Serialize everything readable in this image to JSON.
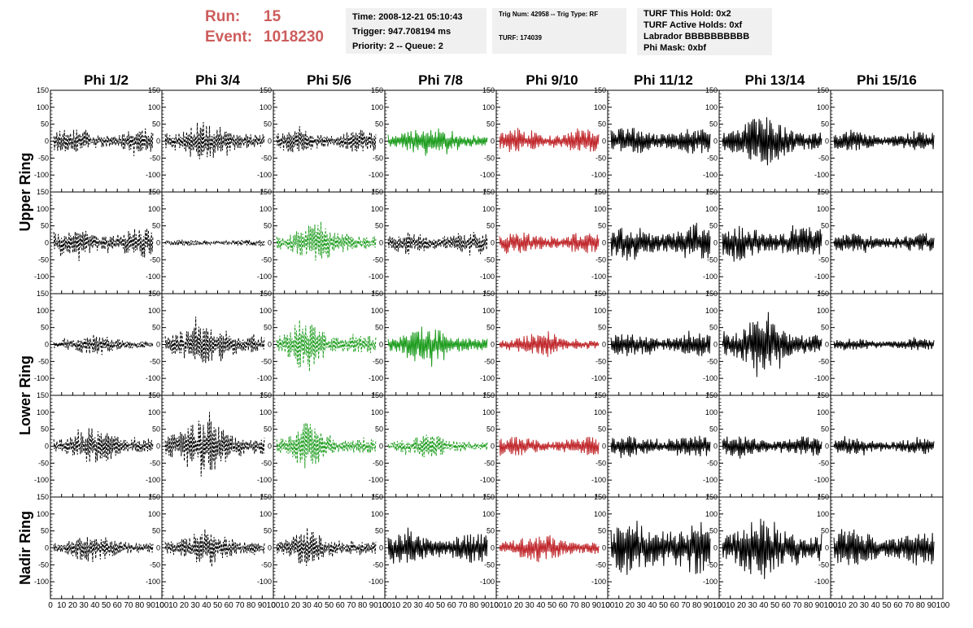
{
  "header": {
    "run_label": "Run:",
    "run_value": "15",
    "event_label": "Event:",
    "event_value": "1018230"
  },
  "time_box": {
    "time": "Time: 2008-12-21 05:10:43",
    "trigger": "Trigger: 947.708194 ms",
    "priority": "Priority: 2 -- Queue: 2"
  },
  "trig_box": {
    "line1": "Trig Num: 42958 -- Trig Type: RF",
    "line2": "TURF: 174039"
  },
  "turf_box": {
    "hold": "TURF This Hold: 0x2",
    "active": "TURF Active Holds: 0xf",
    "labrador": "Labrador BBBBBBBBBB",
    "phimask": "Phi Mask: 0xbf"
  },
  "colors": {
    "header_red": "#cd5c5c",
    "box_bg": "#f0f0f0",
    "trace_black": "#000000",
    "trace_green": "#1f9d1f",
    "trace_red": "#c0282c"
  },
  "chart_data": {
    "type": "line",
    "title": "",
    "columns": [
      "Phi 1/2",
      "Phi 3/4",
      "Phi 5/6",
      "Phi 7/8",
      "Phi 9/10",
      "Phi 11/12",
      "Phi 13/14",
      "Phi 15/16"
    ],
    "ring_labels": [
      {
        "label": "Upper Ring",
        "rows": [
          0,
          1
        ]
      },
      {
        "label": "Lower Ring",
        "rows": [
          2,
          3
        ]
      },
      {
        "label": "Nadir Ring",
        "rows": [
          4
        ]
      }
    ],
    "xlim": [
      0,
      100
    ],
    "x_ticks": [
      0,
      10,
      20,
      30,
      40,
      50,
      60,
      70,
      80,
      90,
      100
    ],
    "x_tick_labels": [
      "0",
      "10",
      "20",
      "30",
      "40",
      "50",
      "60",
      "70",
      "80",
      "90",
      "100"
    ],
    "ylim_rows": [
      [
        -150,
        150
      ],
      [
        -150,
        150
      ],
      [
        -150,
        150
      ],
      [
        -150,
        150
      ],
      [
        -150,
        150
      ]
    ],
    "y_ticks_rows": [
      [
        -100,
        -50,
        0,
        50,
        100,
        150
      ],
      [
        -100,
        -50,
        0,
        50,
        100,
        150
      ],
      [
        -100,
        -50,
        0,
        50,
        100,
        150
      ],
      [
        -100,
        -50,
        0,
        50,
        100,
        150
      ],
      [
        -100,
        -50,
        0,
        50,
        100,
        150
      ]
    ],
    "y_tick_labels": {
      "-100": "-100",
      "-50": "-50",
      "0": "0",
      "50": "50",
      "100": "100",
      "150": "150"
    },
    "grid": false,
    "panels": [
      [
        {
          "color": "black",
          "style": "dashed",
          "amp": 35,
          "env": "flat",
          "seed": 1
        },
        {
          "color": "black",
          "style": "dashed",
          "amp": 60,
          "env": "mid",
          "seed": 2
        },
        {
          "color": "black",
          "style": "dashed",
          "amp": 35,
          "env": "flat",
          "seed": 3
        },
        {
          "color": "green",
          "style": "solid",
          "amp": 45,
          "env": "mid",
          "seed": 4
        },
        {
          "color": "red",
          "style": "solid",
          "amp": 35,
          "env": "flat",
          "seed": 5
        },
        {
          "color": "black",
          "style": "solid",
          "amp": 42,
          "env": "flat",
          "seed": 6
        },
        {
          "color": "black",
          "style": "solid",
          "amp": 75,
          "env": "mid",
          "seed": 7
        },
        {
          "color": "black",
          "style": "solid",
          "amp": 28,
          "env": "flat",
          "seed": 8
        }
      ],
      [
        {
          "color": "black",
          "style": "dashed",
          "amp": 45,
          "env": "flat",
          "seed": 11
        },
        {
          "color": "black",
          "style": "dashed",
          "amp": 10,
          "env": "flat",
          "seed": 12
        },
        {
          "color": "green",
          "style": "dashed",
          "amp": 55,
          "env": "mid",
          "seed": 13
        },
        {
          "color": "black",
          "style": "dashed",
          "amp": 35,
          "env": "flat",
          "seed": 14
        },
        {
          "color": "red",
          "style": "solid",
          "amp": 32,
          "env": "flat",
          "seed": 15
        },
        {
          "color": "black",
          "style": "solid",
          "amp": 55,
          "env": "flat",
          "seed": 16
        },
        {
          "color": "black",
          "style": "solid",
          "amp": 50,
          "env": "flat",
          "seed": 17
        },
        {
          "color": "black",
          "style": "solid",
          "amp": 28,
          "env": "flat",
          "seed": 18
        }
      ],
      [
        {
          "color": "black",
          "style": "dashed",
          "amp": 30,
          "env": "mid",
          "seed": 21
        },
        {
          "color": "black",
          "style": "dashed",
          "amp": 70,
          "env": "mid",
          "seed": 22
        },
        {
          "color": "green",
          "style": "dashed",
          "amp": 85,
          "env": "early",
          "seed": 23
        },
        {
          "color": "green",
          "style": "solid",
          "amp": 50,
          "env": "mid",
          "seed": 24
        },
        {
          "color": "red",
          "style": "solid",
          "amp": 35,
          "env": "mid",
          "seed": 25
        },
        {
          "color": "black",
          "style": "solid",
          "amp": 35,
          "env": "flat",
          "seed": 26
        },
        {
          "color": "black",
          "style": "solid",
          "amp": 80,
          "env": "mid",
          "seed": 27
        },
        {
          "color": "black",
          "style": "solid",
          "amp": 18,
          "env": "flat",
          "seed": 28
        }
      ],
      [
        {
          "color": "black",
          "style": "dashed",
          "amp": 55,
          "env": "mid",
          "seed": 31
        },
        {
          "color": "black",
          "style": "dashed",
          "amp": 80,
          "env": "mid",
          "seed": 32
        },
        {
          "color": "green",
          "style": "dashed",
          "amp": 70,
          "env": "early",
          "seed": 33
        },
        {
          "color": "green",
          "style": "dashed",
          "amp": 35,
          "env": "mid",
          "seed": 34
        },
        {
          "color": "red",
          "style": "solid",
          "amp": 28,
          "env": "flat",
          "seed": 35
        },
        {
          "color": "black",
          "style": "solid",
          "amp": 32,
          "env": "flat",
          "seed": 36
        },
        {
          "color": "black",
          "style": "solid",
          "amp": 30,
          "env": "flat",
          "seed": 37
        },
        {
          "color": "black",
          "style": "solid",
          "amp": 24,
          "env": "flat",
          "seed": 38
        }
      ],
      [
        {
          "color": "black",
          "style": "dashed",
          "amp": 42,
          "env": "mid",
          "seed": 41
        },
        {
          "color": "black",
          "style": "dashed",
          "amp": 48,
          "env": "mid",
          "seed": 42
        },
        {
          "color": "black",
          "style": "dashed",
          "amp": 60,
          "env": "early",
          "seed": 43
        },
        {
          "color": "black",
          "style": "solid",
          "amp": 45,
          "env": "flat",
          "seed": 44
        },
        {
          "color": "red",
          "style": "solid",
          "amp": 45,
          "env": "mid",
          "seed": 45
        },
        {
          "color": "black",
          "style": "solid",
          "amp": 80,
          "env": "flat",
          "seed": 46
        },
        {
          "color": "black",
          "style": "solid",
          "amp": 95,
          "env": "mid",
          "seed": 47
        },
        {
          "color": "black",
          "style": "solid",
          "amp": 55,
          "env": "flat",
          "seed": 48
        }
      ]
    ]
  }
}
